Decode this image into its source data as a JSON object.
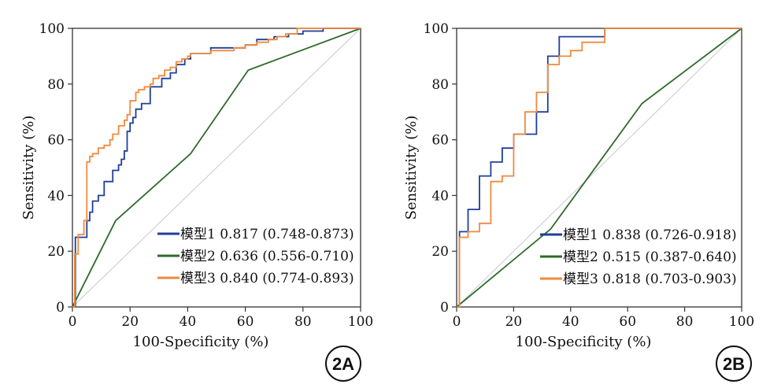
{
  "colors": {
    "model1": "#1f3f99",
    "model2": "#2e6b2a",
    "model3": "#f08a3e",
    "diagonal": "#c8c8c8",
    "axis": "#333333"
  },
  "chart_data": [
    {
      "type": "line",
      "panel_label": "2A",
      "xlabel": "100-Specificity (%)",
      "ylabel": "Sensitivity (%)",
      "xlim": [
        0,
        100
      ],
      "ylim": [
        0,
        100
      ],
      "x_ticks": [
        "0",
        "20",
        "40",
        "60",
        "80",
        "100"
      ],
      "y_ticks": [
        "0",
        "20",
        "40",
        "60",
        "80",
        "100"
      ],
      "legend_position": "bottom-right",
      "reference_line": true,
      "series": [
        {
          "name": "模型1 0.817 (0.748-0.873)",
          "color_key": "model1",
          "x": [
            0,
            1,
            1,
            5,
            5,
            6,
            6,
            7,
            7,
            9,
            9,
            11,
            11,
            14,
            14,
            16,
            16,
            17,
            17,
            18,
            18,
            19,
            19,
            20,
            20,
            21,
            21,
            22,
            22,
            24,
            24,
            27,
            27,
            31,
            31,
            34,
            34,
            36,
            36,
            39,
            39,
            41,
            41,
            48,
            48,
            60,
            60,
            64,
            64,
            70,
            70,
            75,
            75,
            80,
            80,
            87,
            87,
            100
          ],
          "y": [
            0,
            0,
            25,
            25,
            31,
            31,
            34,
            34,
            38,
            38,
            40,
            40,
            45,
            45,
            49,
            49,
            51,
            51,
            53,
            53,
            56,
            56,
            63,
            63,
            66,
            66,
            68,
            68,
            71,
            71,
            73,
            73,
            79,
            79,
            82,
            82,
            84,
            84,
            87,
            87,
            89,
            89,
            91,
            91,
            93,
            93,
            94,
            94,
            96,
            96,
            97,
            97,
            98,
            98,
            99,
            99,
            100,
            100
          ]
        },
        {
          "name": "模型2 0.636 (0.556-0.710)",
          "color_key": "model2",
          "x": [
            0,
            15,
            41,
            61,
            100
          ],
          "y": [
            0,
            31,
            55,
            85,
            100
          ]
        },
        {
          "name": "模型3 0.840 (0.774-0.893)",
          "color_key": "model3",
          "x": [
            0,
            0.8,
            0.8,
            2,
            2,
            4,
            4,
            5,
            5,
            6,
            6,
            7,
            7,
            9,
            9,
            11,
            11,
            13,
            13,
            14,
            14,
            16,
            16,
            18,
            18,
            19,
            19,
            20,
            20,
            22,
            22,
            23,
            23,
            25,
            25,
            27,
            27,
            28,
            28,
            30,
            30,
            32,
            32,
            34,
            34,
            36,
            36,
            38,
            38,
            40,
            40,
            41,
            41,
            44,
            44,
            48,
            48,
            52,
            52,
            56,
            56,
            60,
            60,
            64,
            64,
            68,
            68,
            71,
            71,
            74,
            74,
            78,
            78,
            100
          ],
          "y": [
            0,
            0,
            19,
            19,
            26,
            26,
            31,
            31,
            52,
            52,
            54,
            54,
            55,
            55,
            57,
            57,
            58,
            58,
            60,
            60,
            62,
            62,
            65,
            65,
            67,
            67,
            69,
            69,
            74,
            74,
            77,
            77,
            78,
            78,
            79,
            79,
            80,
            80,
            82,
            82,
            83,
            83,
            85,
            85,
            86,
            86,
            88,
            88,
            89,
            89,
            90,
            90,
            91,
            91,
            91,
            91,
            92,
            92,
            92,
            92,
            93,
            93,
            94,
            94,
            95,
            95,
            96,
            96,
            97,
            97,
            98,
            98,
            100,
            100
          ]
        }
      ]
    },
    {
      "type": "line",
      "panel_label": "2B",
      "xlabel": "100-Specificity (%)",
      "ylabel": "Sensitivity (%)",
      "xlim": [
        0,
        100
      ],
      "ylim": [
        0,
        100
      ],
      "x_ticks": [
        "0",
        "20",
        "40",
        "60",
        "80",
        "100"
      ],
      "y_ticks": [
        "0",
        "20",
        "40",
        "60",
        "80",
        "100"
      ],
      "legend_position": "bottom-right",
      "reference_line": true,
      "series": [
        {
          "name": "模型1 0.838 (0.726-0.918)",
          "color_key": "model1",
          "x": [
            0,
            1,
            1,
            4,
            4,
            8,
            8,
            12,
            12,
            16,
            16,
            20,
            20,
            24,
            24,
            28,
            28,
            32,
            32,
            36,
            36,
            52,
            52,
            100
          ],
          "y": [
            0,
            0,
            27,
            27,
            35,
            35,
            47,
            47,
            52,
            52,
            57,
            57,
            62,
            62,
            62,
            62,
            70,
            70,
            90,
            90,
            97,
            97,
            100,
            100
          ]
        },
        {
          "name": "模型2 0.515 (0.387-0.640)",
          "color_key": "model2",
          "x": [
            0,
            33,
            65,
            100
          ],
          "y": [
            0,
            28,
            73,
            100
          ]
        },
        {
          "name": "模型3 0.818 (0.703-0.903)",
          "color_key": "model3",
          "x": [
            0,
            1,
            1,
            4,
            4,
            8,
            8,
            12,
            12,
            16,
            16,
            20,
            20,
            24,
            24,
            28,
            28,
            32,
            32,
            36,
            36,
            40,
            40,
            44,
            44,
            48,
            48,
            52,
            52,
            100
          ],
          "y": [
            0,
            0,
            25,
            25,
            27,
            27,
            30,
            30,
            45,
            45,
            47,
            47,
            62,
            62,
            70,
            70,
            77,
            77,
            87,
            87,
            90,
            90,
            92,
            92,
            95,
            95,
            95,
            95,
            100,
            100
          ]
        }
      ]
    }
  ]
}
